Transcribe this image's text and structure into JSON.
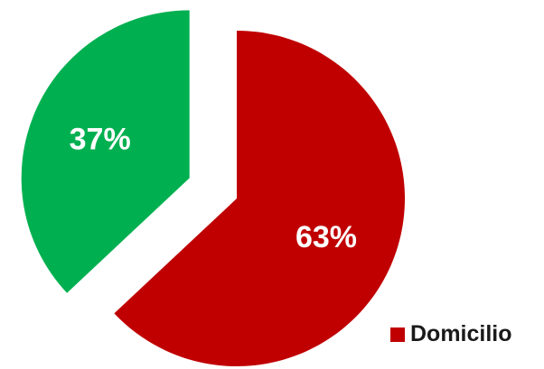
{
  "chart_data": {
    "type": "pie",
    "slices": [
      {
        "name": "Domicilio",
        "value": 63,
        "label": "63%",
        "color": "#c00000"
      },
      {
        "name": "",
        "value": 37,
        "label": "37%",
        "color": "#00b050"
      }
    ],
    "legend": {
      "position": "bottom-right",
      "entries": [
        {
          "label": "Domicilio",
          "color": "#c00000"
        }
      ]
    }
  }
}
